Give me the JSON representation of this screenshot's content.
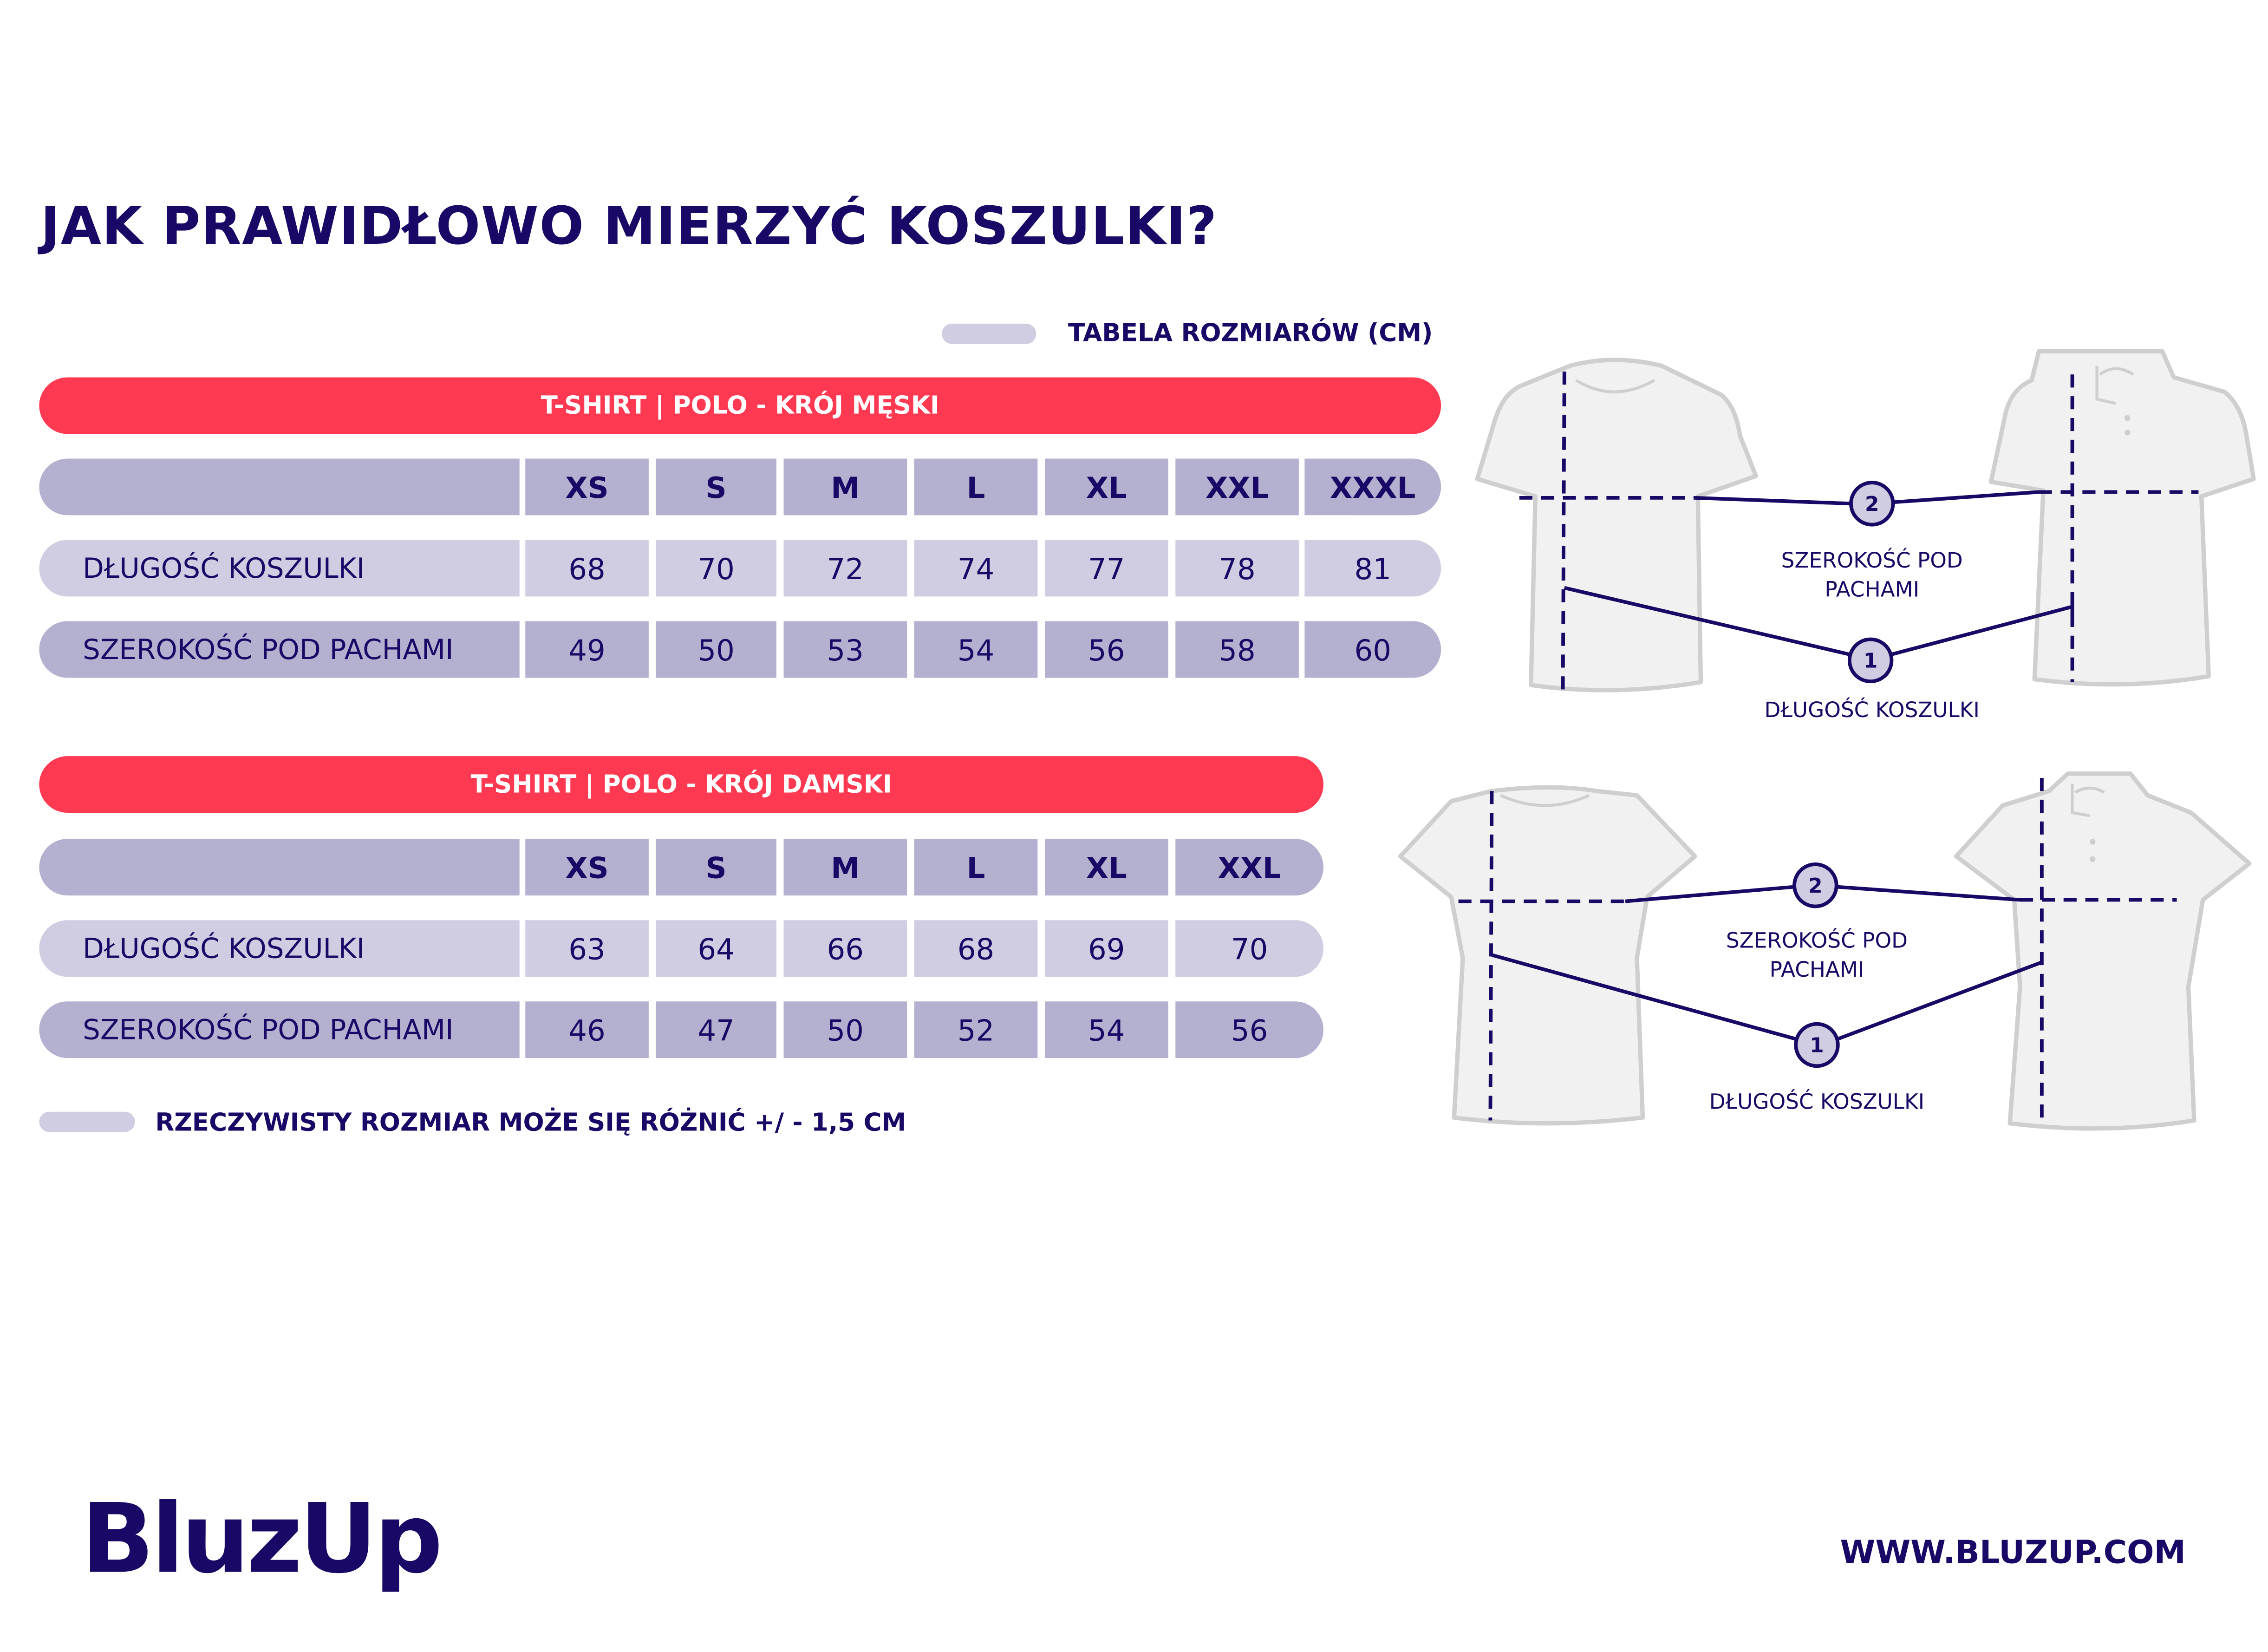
{
  "title": "JAK PRAWIDŁOWO MIERZYĆ KOSZULKI?",
  "legend": "TABELA ROZMIARÓW (CM)",
  "colors": {
    "accent_red": "#FF3951",
    "lavender_dark": "#B4B0D0",
    "lavender_light": "#D0CDE2",
    "navy": "#1A0866"
  },
  "tables": [
    {
      "heading": "T-SHIRT | POLO - KRÓJ MĘSKI",
      "sizes": [
        "XS",
        "S",
        "M",
        "L",
        "XL",
        "XXL",
        "XXXL"
      ],
      "rows": [
        {
          "label": "DŁUGOŚĆ KOSZULKI",
          "values": [
            "68",
            "70",
            "72",
            "74",
            "77",
            "78",
            "81"
          ]
        },
        {
          "label": "SZEROKOŚĆ POD PACHAMI",
          "values": [
            "49",
            "50",
            "53",
            "54",
            "56",
            "58",
            "60"
          ]
        }
      ]
    },
    {
      "heading": "T-SHIRT | POLO - KRÓJ DAMSKI",
      "sizes": [
        "XS",
        "S",
        "M",
        "L",
        "XL",
        "XXL"
      ],
      "rows": [
        {
          "label": "DŁUGOŚĆ KOSZULKI",
          "values": [
            "63",
            "64",
            "66",
            "68",
            "69",
            "70"
          ]
        },
        {
          "label": "SZEROKOŚĆ POD PACHAMI",
          "values": [
            "46",
            "47",
            "50",
            "52",
            "54",
            "56"
          ]
        }
      ]
    }
  ],
  "note": "RZECZYWISTY ROZMIAR MOŻE SIĘ RÓŻNIĆ +/ - 1,5 CM",
  "diagrams": {
    "width_label_1": "SZEROKOŚĆ POD",
    "width_label_2": "PACHAMI",
    "length_label": "DŁUGOŚĆ KOSZULKI",
    "marker_length": "1",
    "marker_width": "2"
  },
  "brand": {
    "logo": "BluzUp",
    "url": "WWW.BLUZUP.COM"
  }
}
